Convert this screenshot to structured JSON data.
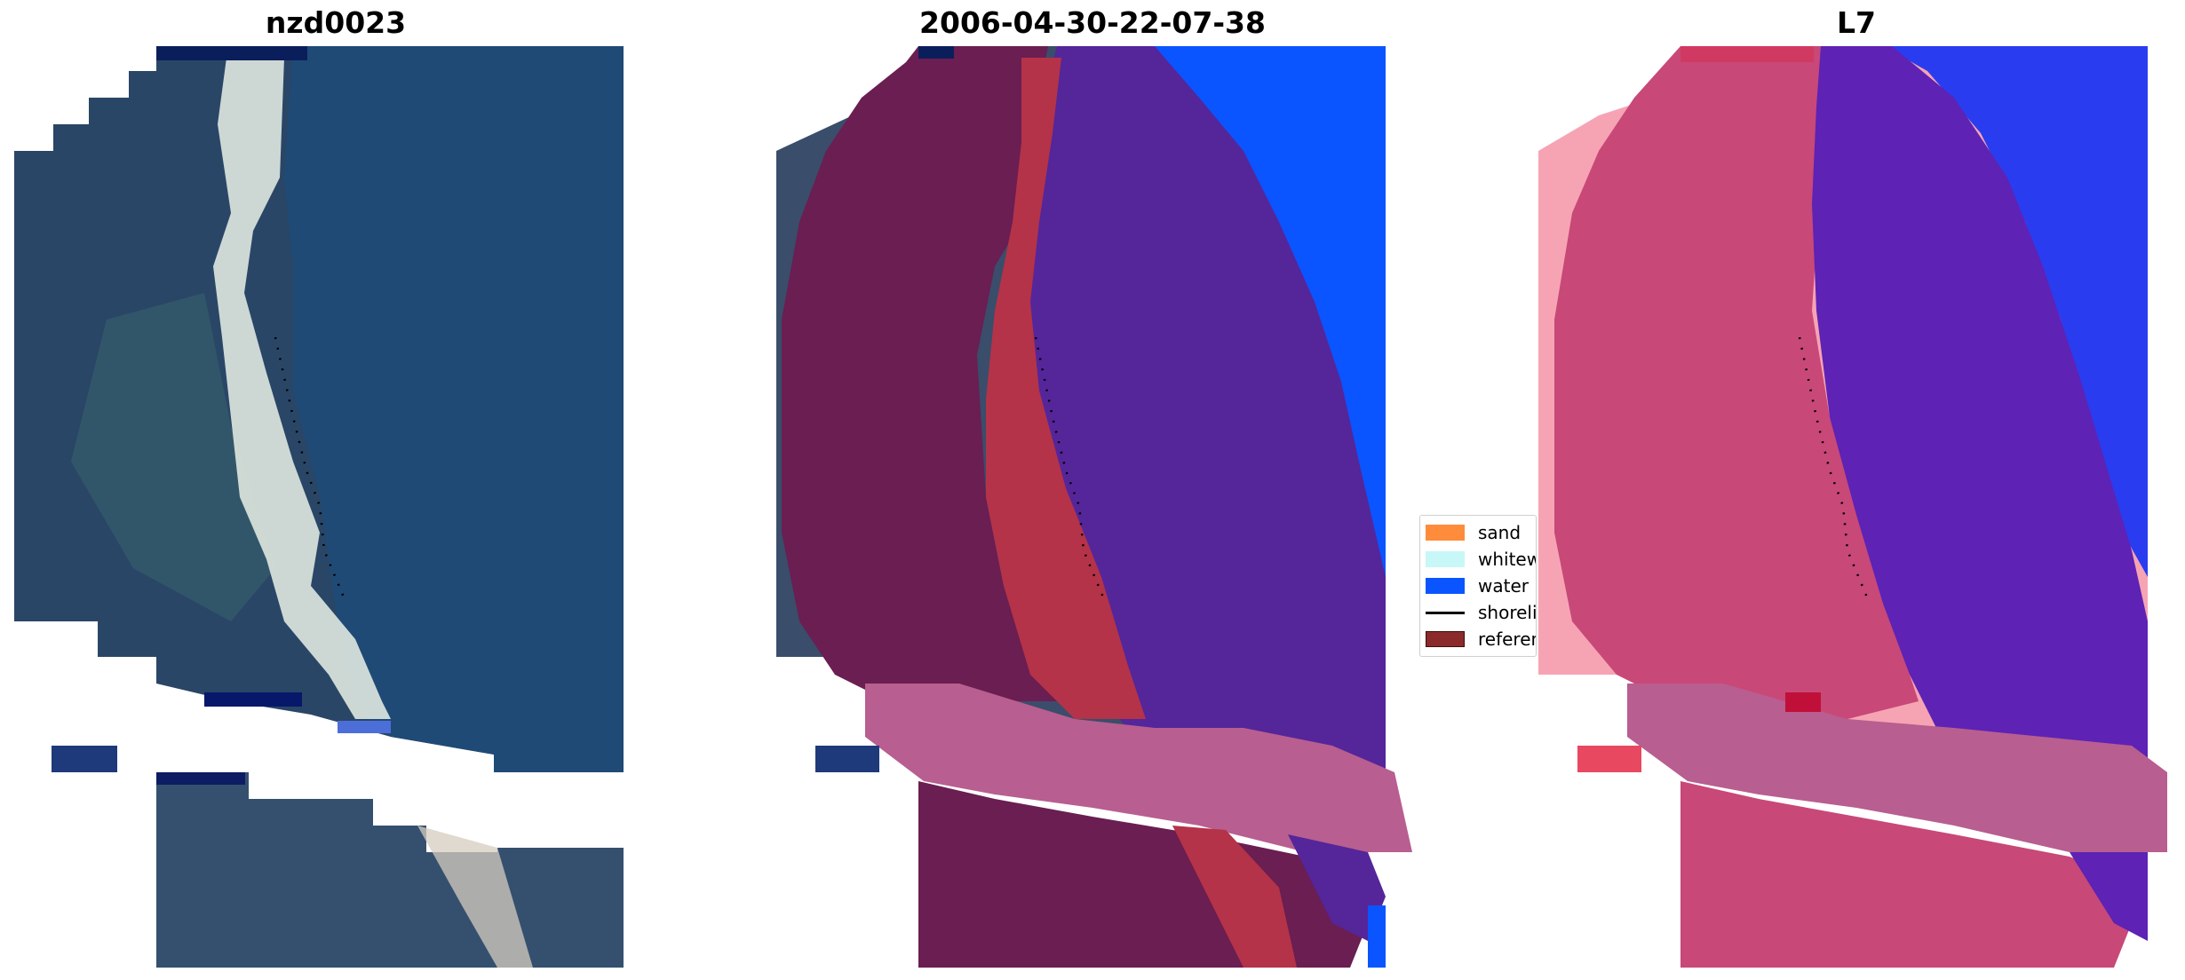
{
  "panels": [
    {
      "title": "nzd0023",
      "kind": "rgb"
    },
    {
      "title": "2006-04-30-22-07-38",
      "kind": "classified"
    },
    {
      "title": "L7",
      "kind": "index"
    }
  ],
  "legend": {
    "items": [
      {
        "label": "sand",
        "color": "#ff8c3a",
        "type": "patch"
      },
      {
        "label": "whitewater",
        "color": "#c8f7f7",
        "type": "patch"
      },
      {
        "label": "water",
        "color": "#0a55ff",
        "type": "patch"
      },
      {
        "label": "shoreline",
        "color": "#000000",
        "type": "line"
      },
      {
        "label": "reference",
        "color": "#8b2a2a",
        "type": "patch"
      }
    ]
  },
  "colors": {
    "rgb_water": "#1f4470",
    "rgb_land": "#2f4a6a",
    "rgb_surf": "#dfe8e0",
    "cls_land": "#6a1e52",
    "cls_sand": "#b43348",
    "cls_deep": "#55259a",
    "cls_ocean": "#0a55ff",
    "cls_ref": "#b85e90",
    "idx_land": "#c84878",
    "idx_water": "#5e22b4",
    "idx_ocean": "#2a3cf0",
    "idx_ref": "#b85e90"
  }
}
